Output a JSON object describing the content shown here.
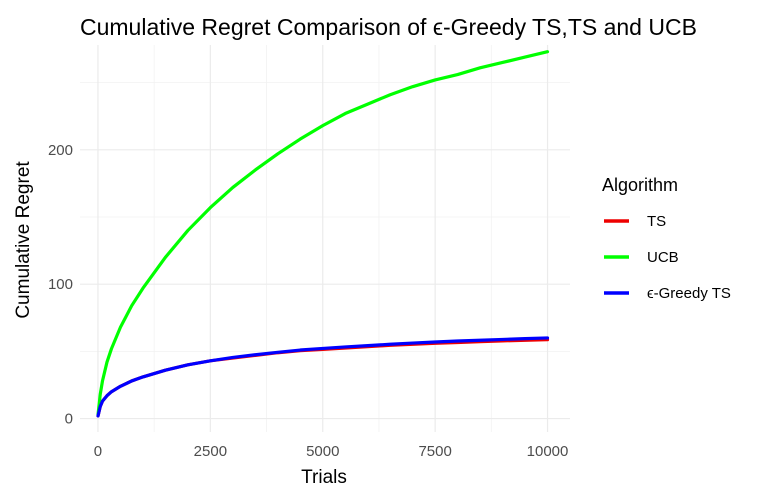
{
  "chart_data": {
    "type": "line",
    "title": "Cumulative Regret Comparison of ϵ-Greedy TS,TS and UCB",
    "xlabel": "Trials",
    "ylabel": "Cumulative Regret",
    "xlim": [
      -400,
      10500
    ],
    "ylim": [
      -10,
      278
    ],
    "x_ticks": [
      0,
      2500,
      5000,
      7500,
      10000
    ],
    "x_tick_labels": [
      "0",
      "2500",
      "5000",
      "7500",
      "10000"
    ],
    "y_ticks": [
      0,
      100,
      200
    ],
    "y_tick_labels": [
      "0",
      "100",
      "200"
    ],
    "grid": true,
    "legend": {
      "title": "Algorithm",
      "position": "right"
    },
    "x": [
      1,
      50,
      100,
      200,
      300,
      500,
      750,
      1000,
      1500,
      2000,
      2500,
      3000,
      3500,
      4000,
      4500,
      5000,
      5500,
      6000,
      6500,
      7000,
      7500,
      8000,
      8500,
      9000,
      9500,
      10000
    ],
    "series": [
      {
        "name": "TS",
        "color": "#ee0000",
        "values": [
          2,
          9,
          13,
          17,
          20,
          24,
          28,
          31,
          36,
          40,
          43,
          45,
          47,
          49,
          50.5,
          51.5,
          52.5,
          53.5,
          54.5,
          55.3,
          56,
          56.6,
          57.2,
          57.8,
          58.3,
          58.7
        ]
      },
      {
        "name": "UCB",
        "color": "#00ff00",
        "values": [
          3,
          18,
          28,
          42,
          52,
          68,
          84,
          97,
          120,
          140,
          157,
          172,
          185,
          197,
          208,
          218,
          227,
          234,
          241,
          247,
          252,
          256,
          261,
          265,
          269,
          273
        ]
      },
      {
        "name": "ϵ-Greedy TS",
        "color": "#0000ff",
        "values": [
          2,
          9,
          13,
          17,
          20,
          24,
          28,
          31,
          36,
          40,
          43,
          45.5,
          47.5,
          49.3,
          51,
          52.2,
          53.3,
          54.3,
          55.3,
          56.2,
          57,
          57.7,
          58.3,
          58.9,
          59.5,
          60
        ]
      }
    ]
  }
}
